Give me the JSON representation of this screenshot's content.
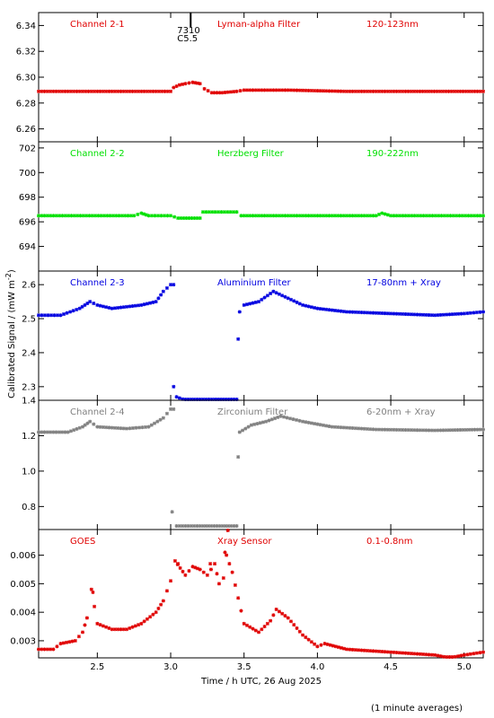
{
  "figure": {
    "ylabel": "Calibrated Signal  / (mW m",
    "ylabel_sup": "-2",
    "ylabel_close": ")",
    "xlabel": "Time / h UTC, 26 Aug 2025",
    "footnote": "(1 minute averages)",
    "flare_marker": {
      "time": 3.13,
      "label_top": "7310",
      "label_bottom": "C5.5"
    }
  },
  "chart_data": [
    {
      "type": "scatter",
      "channel": "Channel 2-1",
      "filter": "Lyman-alpha Filter",
      "band": "120-123nm",
      "color": "#e00000",
      "xlim": [
        2.1,
        5.13
      ],
      "ylim": [
        6.25,
        6.35
      ],
      "yticks": [
        6.26,
        6.28,
        6.3,
        6.32,
        6.34
      ],
      "ytick_labels": [
        "6.26",
        "6.28",
        "6.30",
        "6.32",
        "6.34"
      ],
      "series_points": [
        [
          2.1,
          6.289
        ],
        [
          2.5,
          6.289
        ],
        [
          2.9,
          6.289
        ],
        [
          3.0,
          6.289
        ],
        [
          3.02,
          6.292
        ],
        [
          3.06,
          6.294
        ],
        [
          3.1,
          6.295
        ],
        [
          3.15,
          6.296
        ],
        [
          3.2,
          6.295
        ],
        [
          3.23,
          6.291
        ],
        [
          3.28,
          6.288
        ],
        [
          3.35,
          6.288
        ],
        [
          3.45,
          6.289
        ],
        [
          3.5,
          6.29
        ],
        [
          3.8,
          6.29
        ],
        [
          4.2,
          6.289
        ],
        [
          4.6,
          6.289
        ],
        [
          5.13,
          6.289
        ]
      ]
    },
    {
      "type": "scatter",
      "channel": "Channel 2-2",
      "filter": "Herzberg Filter",
      "band": "190-222nm",
      "color": "#00e000",
      "xlim": [
        2.1,
        5.13
      ],
      "ylim": [
        692.0,
        702.5
      ],
      "yticks": [
        694,
        696,
        698,
        700,
        702
      ],
      "ytick_labels": [
        "694",
        "696",
        "698",
        "700",
        "702"
      ],
      "series_points": [
        [
          2.1,
          696.5
        ],
        [
          2.75,
          696.5
        ],
        [
          2.8,
          696.7
        ],
        [
          2.85,
          696.5
        ],
        [
          3.0,
          696.5
        ],
        [
          3.05,
          696.3
        ],
        [
          3.2,
          696.3
        ],
        [
          3.22,
          696.8
        ],
        [
          3.45,
          696.8
        ],
        [
          3.48,
          696.5
        ],
        [
          4.4,
          696.5
        ],
        [
          4.44,
          696.7
        ],
        [
          4.5,
          696.5
        ],
        [
          5.13,
          696.5
        ]
      ]
    },
    {
      "type": "scatter",
      "channel": "Channel 2-3",
      "filter": "Aluminium Filter",
      "band": "17-80nm + Xray",
      "color": "#0000e0",
      "xlim": [
        2.1,
        5.13
      ],
      "ylim": [
        2.26,
        2.64
      ],
      "yticks": [
        2.3,
        2.4,
        2.5,
        2.6
      ],
      "ytick_labels": [
        "2.3",
        "2.4",
        "2.5",
        "2.6"
      ],
      "series_points": [
        [
          2.1,
          2.51
        ],
        [
          2.25,
          2.51
        ],
        [
          2.38,
          2.53
        ],
        [
          2.45,
          2.55
        ],
        [
          2.5,
          2.54
        ],
        [
          2.6,
          2.53
        ],
        [
          2.8,
          2.54
        ],
        [
          2.9,
          2.55
        ],
        [
          2.95,
          2.58
        ],
        [
          3.0,
          2.6
        ],
        [
          3.02,
          2.6
        ]
      ],
      "gap_points": [
        [
          3.02,
          2.3
        ],
        [
          3.04,
          2.27
        ],
        [
          3.1,
          2.26
        ],
        [
          3.3,
          2.26
        ],
        [
          3.45,
          2.26
        ],
        [
          3.46,
          2.44
        ]
      ],
      "series_points_after": [
        [
          3.47,
          2.52
        ],
        [
          3.5,
          2.54
        ],
        [
          3.6,
          2.55
        ],
        [
          3.7,
          2.58
        ],
        [
          3.8,
          2.56
        ],
        [
          3.9,
          2.54
        ],
        [
          4.0,
          2.53
        ],
        [
          4.2,
          2.52
        ],
        [
          4.5,
          2.515
        ],
        [
          4.8,
          2.51
        ],
        [
          5.0,
          2.515
        ],
        [
          5.13,
          2.52
        ]
      ]
    },
    {
      "type": "scatter",
      "channel": "Channel 2-4",
      "filter": "Zirconium Filter",
      "band": "6-20nm + Xray",
      "color": "#808080",
      "xlim": [
        2.1,
        5.13
      ],
      "ylim": [
        0.67,
        1.4
      ],
      "yticks": [
        0.8,
        1.0,
        1.2,
        1.4
      ],
      "ytick_labels": [
        "0.8",
        "1.0",
        "1.2",
        "1.4"
      ],
      "series_points": [
        [
          2.1,
          1.22
        ],
        [
          2.3,
          1.22
        ],
        [
          2.4,
          1.25
        ],
        [
          2.45,
          1.28
        ],
        [
          2.5,
          1.25
        ],
        [
          2.7,
          1.24
        ],
        [
          2.85,
          1.25
        ],
        [
          2.95,
          1.3
        ],
        [
          3.0,
          1.35
        ],
        [
          3.02,
          1.35
        ]
      ],
      "gap_points": [
        [
          3.01,
          0.77
        ],
        [
          3.04,
          0.69
        ],
        [
          3.2,
          0.69
        ],
        [
          3.45,
          0.69
        ],
        [
          3.46,
          1.08
        ]
      ],
      "series_points_after": [
        [
          3.47,
          1.22
        ],
        [
          3.55,
          1.26
        ],
        [
          3.65,
          1.28
        ],
        [
          3.75,
          1.31
        ],
        [
          3.9,
          1.28
        ],
        [
          4.1,
          1.25
        ],
        [
          4.4,
          1.235
        ],
        [
          4.8,
          1.23
        ],
        [
          5.13,
          1.235
        ]
      ]
    },
    {
      "type": "scatter",
      "channel": "GOES",
      "filter": "Xray Sensor",
      "band": "0.1-0.8nm",
      "color": "#e00000",
      "xlim": [
        2.1,
        5.13
      ],
      "ylim": [
        0.0024,
        0.0069
      ],
      "yticks": [
        0.003,
        0.004,
        0.005,
        0.006
      ],
      "ytick_labels": [
        "0.003",
        "0.004",
        "0.005",
        "0.006"
      ],
      "series_points": [
        [
          2.1,
          0.0027
        ],
        [
          2.2,
          0.0027
        ],
        [
          2.25,
          0.0029
        ],
        [
          2.35,
          0.003
        ],
        [
          2.4,
          0.0033
        ],
        [
          2.43,
          0.0038
        ],
        [
          2.46,
          0.0048
        ],
        [
          2.5,
          0.0036
        ],
        [
          2.6,
          0.0034
        ],
        [
          2.7,
          0.0034
        ],
        [
          2.8,
          0.0036
        ],
        [
          2.9,
          0.004
        ],
        [
          2.95,
          0.0044
        ],
        [
          3.0,
          0.0051
        ],
        [
          3.03,
          0.0058
        ],
        [
          3.1,
          0.0053
        ],
        [
          3.15,
          0.0056
        ],
        [
          3.2,
          0.0055
        ],
        [
          3.25,
          0.0053
        ],
        [
          3.3,
          0.0057
        ],
        [
          3.33,
          0.005
        ],
        [
          3.36,
          0.0052
        ],
        [
          3.38,
          0.006
        ],
        [
          3.42,
          0.0054
        ],
        [
          3.5,
          0.0036
        ],
        [
          3.6,
          0.0033
        ],
        [
          3.68,
          0.0037
        ],
        [
          3.72,
          0.0041
        ],
        [
          3.8,
          0.0038
        ],
        [
          3.9,
          0.0032
        ],
        [
          4.0,
          0.0028
        ],
        [
          4.05,
          0.0029
        ],
        [
          4.2,
          0.0027
        ],
        [
          4.5,
          0.0026
        ],
        [
          4.8,
          0.0025
        ],
        [
          4.9,
          0.0024
        ],
        [
          5.0,
          0.0025
        ],
        [
          5.13,
          0.0026
        ]
      ],
      "extra_points": [
        [
          2.47,
          0.0047
        ],
        [
          3.05,
          0.0057
        ],
        [
          3.27,
          0.0057
        ],
        [
          3.37,
          0.0061
        ],
        [
          3.39,
          0.0069
        ]
      ]
    }
  ],
  "xaxis": {
    "xlim": [
      2.1,
      5.13
    ],
    "xticks": [
      2.5,
      3.0,
      3.5,
      4.0,
      4.5,
      5.0
    ],
    "xtick_labels": [
      "2.5",
      "3.0",
      "3.5",
      "4.0",
      "4.5",
      "5.0"
    ]
  }
}
